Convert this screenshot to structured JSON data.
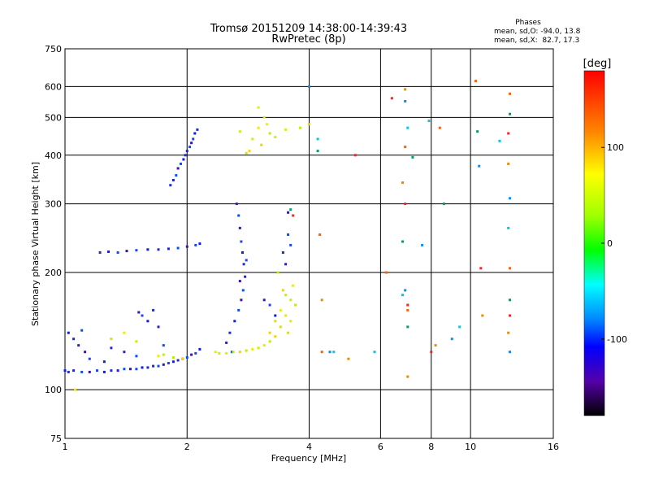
{
  "chart_data": {
    "type": "scatter",
    "title": "Tromsø 20151209 14:38:00-14:39:43",
    "subtitle": "RwPretec (8p)",
    "xlabel": "Frequency [MHz]",
    "ylabel": "Stationary phase Virtual Height [km]",
    "x_scale": "log",
    "y_scale": "log",
    "xlim": [
      1,
      16
    ],
    "ylim": [
      75,
      750
    ],
    "x_ticks": [
      1,
      2,
      4,
      6,
      8,
      10,
      16
    ],
    "y_ticks": [
      75,
      100,
      200,
      300,
      400,
      500,
      600,
      750
    ],
    "grid": true,
    "stats": {
      "title": "Phases",
      "line_o": "mean, sd,O: -94.0, 13.8",
      "line_x": "mean, sd,X:  82.7, 17.3"
    },
    "colorbar": {
      "label": "[deg]",
      "range": [
        -180,
        180
      ],
      "ticks": [
        100,
        0,
        -100
      ]
    },
    "series": [
      {
        "points": [
          [
            1.0,
            112
          ],
          [
            1.02,
            111
          ],
          [
            1.05,
            112
          ],
          [
            1.1,
            111
          ],
          [
            1.15,
            111
          ],
          [
            1.2,
            112
          ],
          [
            1.25,
            111
          ],
          [
            1.3,
            112
          ],
          [
            1.35,
            112
          ],
          [
            1.4,
            113
          ],
          [
            1.45,
            113
          ],
          [
            1.5,
            113
          ],
          [
            1.55,
            114
          ],
          [
            1.6,
            114
          ],
          [
            1.65,
            115
          ],
          [
            1.7,
            115
          ],
          [
            1.75,
            116
          ],
          [
            1.8,
            117
          ],
          [
            1.85,
            118
          ],
          [
            1.9,
            119
          ],
          [
            1.95,
            120
          ],
          [
            2.0,
            121
          ],
          [
            2.05,
            123
          ],
          [
            2.1,
            124
          ],
          [
            2.15,
            127
          ],
          [
            1.22,
            225
          ],
          [
            1.28,
            226
          ],
          [
            1.35,
            225
          ],
          [
            1.42,
            227
          ],
          [
            1.5,
            228
          ],
          [
            1.6,
            229
          ],
          [
            1.7,
            229
          ],
          [
            1.8,
            230
          ],
          [
            1.9,
            231
          ],
          [
            2.0,
            233
          ],
          [
            2.1,
            235
          ],
          [
            2.15,
            237
          ],
          [
            1.82,
            335
          ],
          [
            1.85,
            345
          ],
          [
            1.88,
            355
          ],
          [
            1.9,
            370
          ],
          [
            1.93,
            380
          ],
          [
            1.96,
            390
          ],
          [
            1.98,
            400
          ],
          [
            2.0,
            410
          ],
          [
            2.03,
            420
          ],
          [
            2.05,
            430
          ],
          [
            2.07,
            440
          ],
          [
            2.09,
            455
          ],
          [
            2.12,
            465
          ],
          [
            2.65,
            300
          ],
          [
            2.68,
            280
          ],
          [
            2.7,
            260
          ],
          [
            2.72,
            240
          ],
          [
            2.74,
            225
          ],
          [
            2.76,
            210
          ],
          [
            2.78,
            195
          ],
          [
            2.75,
            180
          ],
          [
            2.72,
            170
          ],
          [
            2.68,
            160
          ],
          [
            2.62,
            150
          ],
          [
            2.55,
            140
          ],
          [
            2.5,
            132
          ],
          [
            2.58,
            125
          ],
          [
            2.7,
            190
          ],
          [
            2.8,
            215
          ],
          [
            1.02,
            140
          ],
          [
            1.05,
            135
          ],
          [
            1.08,
            130
          ],
          [
            1.1,
            142
          ],
          [
            1.12,
            125
          ],
          [
            1.15,
            120
          ],
          [
            1.25,
            118
          ],
          [
            1.3,
            128
          ],
          [
            1.4,
            125
          ],
          [
            1.5,
            122
          ],
          [
            1.52,
            158
          ],
          [
            1.55,
            155
          ],
          [
            1.6,
            150
          ],
          [
            1.65,
            160
          ],
          [
            1.7,
            145
          ],
          [
            1.75,
            130
          ],
          [
            3.1,
            170
          ],
          [
            3.2,
            165
          ],
          [
            3.3,
            155
          ],
          [
            3.45,
            225
          ],
          [
            3.5,
            210
          ],
          [
            3.55,
            250
          ],
          [
            3.55,
            285
          ],
          [
            3.6,
            235
          ]
        ]
      },
      {
        "points": [
          [
            2.35,
            125
          ],
          [
            2.4,
            124
          ],
          [
            2.5,
            124
          ],
          [
            2.6,
            125
          ],
          [
            2.7,
            125
          ],
          [
            2.8,
            126
          ],
          [
            2.9,
            127
          ],
          [
            3.0,
            128
          ],
          [
            3.1,
            130
          ],
          [
            3.2,
            133
          ],
          [
            3.3,
            137
          ],
          [
            3.4,
            145
          ],
          [
            3.5,
            155
          ],
          [
            3.6,
            170
          ],
          [
            3.65,
            185
          ],
          [
            3.7,
            165
          ],
          [
            3.2,
            140
          ],
          [
            3.3,
            150
          ],
          [
            3.4,
            160
          ],
          [
            3.5,
            175
          ],
          [
            3.6,
            150
          ],
          [
            3.35,
            200
          ],
          [
            3.45,
            180
          ],
          [
            3.55,
            140
          ],
          [
            3.0,
            470
          ],
          [
            2.9,
            440
          ],
          [
            3.1,
            500
          ],
          [
            3.2,
            455
          ],
          [
            2.85,
            410
          ],
          [
            3.05,
            425
          ],
          [
            3.15,
            480
          ],
          [
            3.3,
            445
          ],
          [
            3.5,
            465
          ],
          [
            3.8,
            470
          ],
          [
            4.0,
            480
          ],
          [
            2.8,
            405
          ],
          [
            3.0,
            530
          ],
          [
            2.7,
            460
          ],
          [
            1.7,
            122
          ],
          [
            1.85,
            121
          ],
          [
            1.95,
            120
          ],
          [
            1.3,
            135
          ],
          [
            1.4,
            140
          ],
          [
            1.5,
            133
          ],
          [
            1.06,
            100
          ],
          [
            1.75,
            123
          ]
        ]
      },
      {
        "points": [
          [
            4.0,
            600
          ],
          [
            4.2,
            440
          ],
          [
            4.25,
            250
          ],
          [
            4.2,
            410
          ],
          [
            5.2,
            400
          ],
          [
            4.3,
            170
          ],
          [
            4.5,
            125
          ],
          [
            5.8,
            125
          ],
          [
            6.2,
            200
          ],
          [
            6.8,
            240
          ],
          [
            6.4,
            560
          ],
          [
            6.9,
            590
          ],
          [
            6.9,
            550
          ],
          [
            7.0,
            470
          ],
          [
            6.9,
            420
          ],
          [
            7.2,
            395
          ],
          [
            6.9,
            300
          ],
          [
            6.8,
            340
          ],
          [
            6.9,
            180
          ],
          [
            6.8,
            175
          ],
          [
            7.0,
            160
          ],
          [
            7.0,
            145
          ],
          [
            7.0,
            165
          ],
          [
            7.0,
            108
          ],
          [
            7.6,
            235
          ],
          [
            7.9,
            490
          ],
          [
            8.4,
            470
          ],
          [
            8.6,
            300
          ],
          [
            8.0,
            125
          ],
          [
            8.2,
            130
          ],
          [
            9.0,
            135
          ],
          [
            9.4,
            145
          ],
          [
            10.3,
            620
          ],
          [
            10.4,
            460
          ],
          [
            10.6,
            205
          ],
          [
            10.7,
            155
          ],
          [
            10.5,
            375
          ],
          [
            11.8,
            435
          ],
          [
            12.5,
            575
          ],
          [
            12.5,
            510
          ],
          [
            12.4,
            455
          ],
          [
            12.4,
            380
          ],
          [
            12.5,
            310
          ],
          [
            12.4,
            260
          ],
          [
            12.5,
            205
          ],
          [
            12.5,
            170
          ],
          [
            12.5,
            155
          ],
          [
            12.4,
            140
          ],
          [
            12.5,
            125
          ],
          [
            4.6,
            125
          ],
          [
            4.3,
            125
          ],
          [
            3.6,
            290
          ],
          [
            3.65,
            280
          ],
          [
            5.0,
            120
          ]
        ]
      }
    ]
  }
}
